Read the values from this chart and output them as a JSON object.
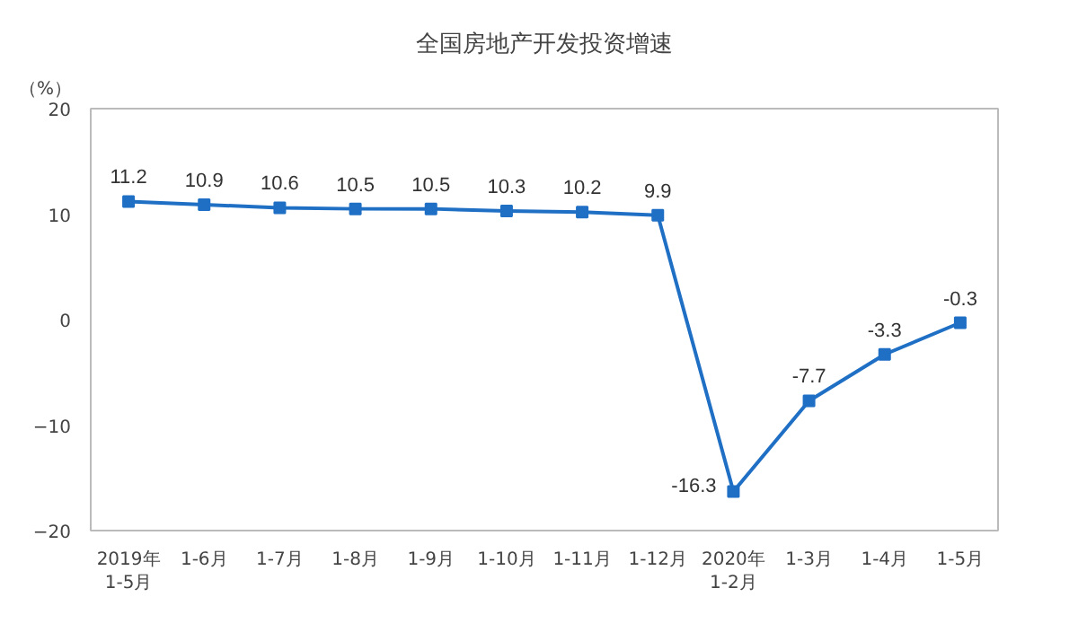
{
  "chart_data": {
    "type": "line",
    "title": "全国房地产开发投资增速",
    "ylabel": "（%）",
    "categories": [
      "2019年\n1-5月",
      "1-6月",
      "1-7月",
      "1-8月",
      "1-9月",
      "1-10月",
      "1-11月",
      "1-12月",
      "2020年\n1-2月",
      "1-3月",
      "1-4月",
      "1-5月"
    ],
    "series": [
      {
        "color": "#1f6fc5",
        "values": [
          11.2,
          10.9,
          10.6,
          10.5,
          10.5,
          10.3,
          10.2,
          9.9,
          -16.3,
          -7.7,
          -3.3,
          -0.3
        ]
      }
    ],
    "ylim": [
      -20,
      20
    ],
    "yticks": [
      -20,
      -10,
      0,
      10,
      20
    ],
    "grid": false,
    "marker": "square",
    "line_style": "solid",
    "data_labels": true
  }
}
